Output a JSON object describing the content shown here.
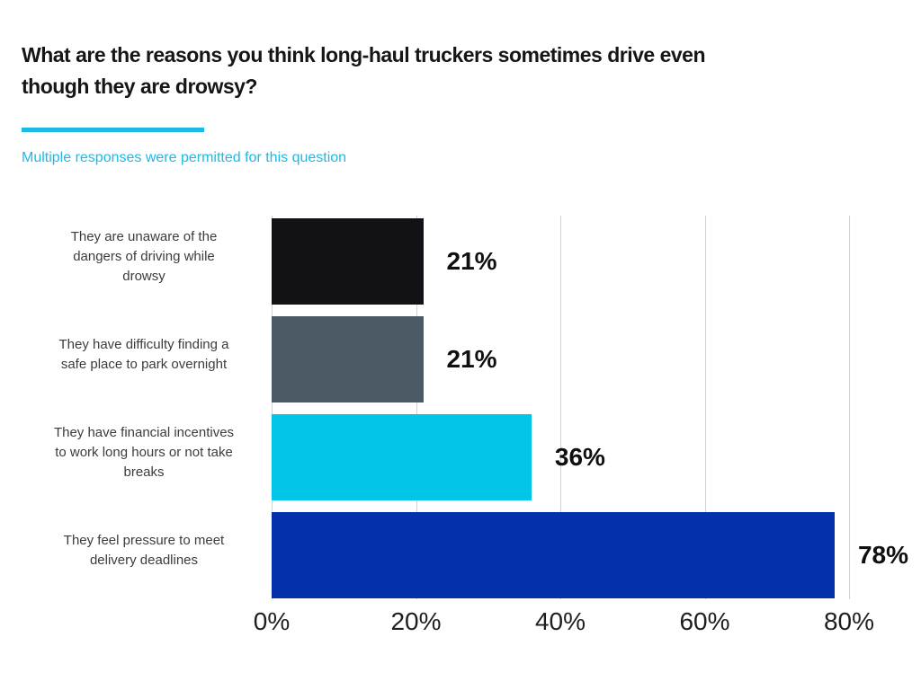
{
  "header": {
    "title": "What are the reasons you think long-haul truckers sometimes drive even though they are drowsy?",
    "title_lines": [
      "What are the reasons you think long-haul truckers sometimes drive even",
      "though they are drowsy?"
    ],
    "subtitle": "Multiple responses were permitted for this question",
    "accent_color": "#1cbae6",
    "title_color": "#16161a"
  },
  "chart_data": {
    "type": "bar",
    "orientation": "horizontal",
    "title": "What are the reasons you think long-haul truckers sometimes drive even though they are drowsy?",
    "subtitle": "Multiple responses were permitted for this question",
    "categories": [
      "They are unaware of the dangers of driving while drowsy",
      "They have difficulty finding a safe place to park overnight",
      "They have financial incentives to work long hours or not take breaks",
      "They feel pressure to meet delivery deadlines"
    ],
    "category_lines": [
      [
        "They are unaware of the",
        "dangers of driving while",
        "drowsy"
      ],
      [
        "They have difficulty finding a",
        "safe place to park overnight"
      ],
      [
        "They have financial incentives",
        "to work long hours or not take",
        "breaks"
      ],
      [
        "They feel pressure to meet",
        "delivery deadlines"
      ]
    ],
    "values": [
      21,
      21,
      36,
      78
    ],
    "value_labels": [
      "21%",
      "21%",
      "36%",
      "78%"
    ],
    "bar_colors": [
      "#121216",
      "#4b5a64",
      "#03c5e8",
      "#0430ac"
    ],
    "xlabel": "",
    "ylabel": "",
    "xlim": [
      0,
      80
    ],
    "x_tick_values": [
      0,
      20,
      40,
      60,
      80
    ],
    "x_tick_labels": [
      "0%",
      "20%",
      "40%",
      "60%",
      "80%"
    ],
    "grid": true,
    "gridline_color": "#d3d3d3",
    "legend": false
  }
}
